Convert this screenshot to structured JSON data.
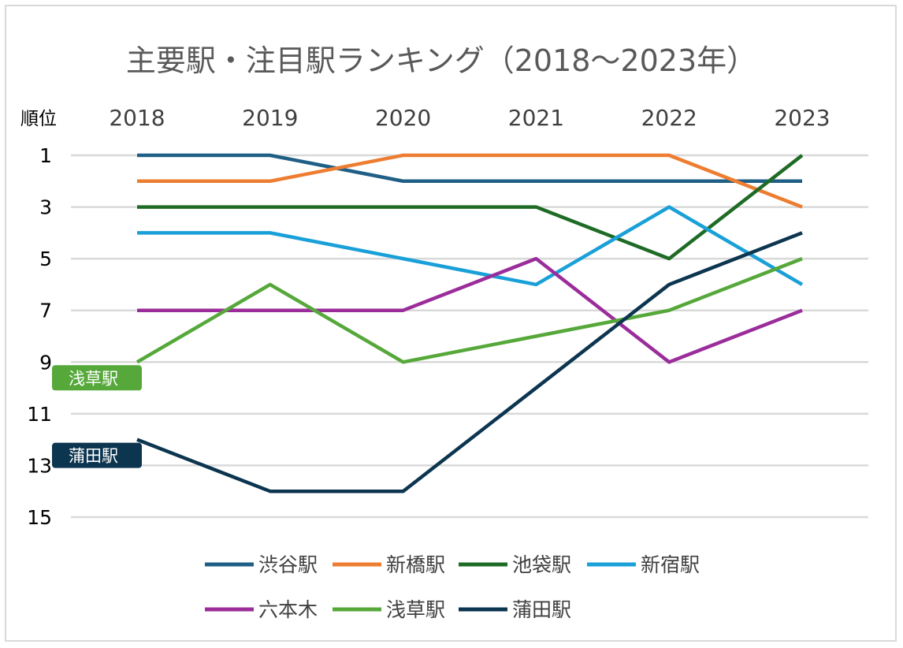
{
  "chart_data": {
    "type": "line",
    "title": "主要駅・注目駅ランキング（2018～2023年）",
    "ylabel": "順位",
    "x": [
      "2018",
      "2019",
      "2020",
      "2021",
      "2022",
      "2023"
    ],
    "y_ticks": [
      "1",
      "3",
      "5",
      "7",
      "9",
      "11",
      "13",
      "15"
    ],
    "ylim": [
      1,
      15
    ],
    "y_inverted": true,
    "x_axis_position": "top",
    "grid": true,
    "legend_position": "bottom",
    "series": [
      {
        "name": "渋谷駅",
        "color": "#1f5f86",
        "values": [
          1,
          1,
          2,
          2,
          2,
          2
        ]
      },
      {
        "name": "新橋駅",
        "color": "#ed7d31",
        "values": [
          2,
          2,
          1,
          1,
          1,
          3
        ]
      },
      {
        "name": "池袋駅",
        "color": "#1e6b26",
        "values": [
          3,
          3,
          3,
          3,
          5,
          1
        ]
      },
      {
        "name": "新宿駅",
        "color": "#1aa0d8",
        "values": [
          4,
          4,
          5,
          6,
          3,
          6
        ]
      },
      {
        "name": "六本木",
        "color": "#9b2d9b",
        "values": [
          7,
          7,
          7,
          5,
          9,
          7
        ]
      },
      {
        "name": "浅草駅",
        "color": "#56a83a",
        "values": [
          9,
          6,
          9,
          8,
          7,
          5
        ]
      },
      {
        "name": "蒲田駅",
        "color": "#0c3550",
        "values": [
          12,
          14,
          14,
          10,
          6,
          4
        ]
      }
    ],
    "annotations": [
      {
        "text": "浅草駅",
        "color": "#56a83a",
        "series": "浅草駅"
      },
      {
        "text": "蒲田駅",
        "color": "#0c3550",
        "series": "蒲田駅"
      }
    ]
  }
}
